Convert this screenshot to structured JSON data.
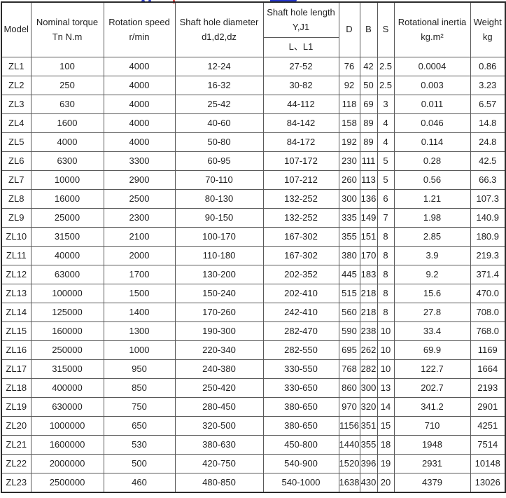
{
  "colors": {
    "border_outer": "#2b2b2b",
    "border_inner": "#595959",
    "text": "#1f1f1f",
    "clipped_title_blue": "#2233cc",
    "clipped_title_red": "#e02020",
    "background": "#ffffff"
  },
  "table": {
    "header": {
      "model": "Model",
      "nominal_torque": {
        "line1": "Nominal torque",
        "line2": "Tn N.m"
      },
      "rotation_speed": {
        "line1": "Rotation speed",
        "line2": "r/min"
      },
      "shaft_hole_diameter": {
        "line1": "Shaft hole diameter",
        "line2": "d1,d2,dz"
      },
      "shaft_hole_length": {
        "line1": "Shaft hole length",
        "line2": "Y,J1"
      },
      "shaft_hole_length_sub": "L、L1",
      "d": "D",
      "b": "B",
      "s": "S",
      "rotational_inertia": {
        "line1": "Rotational inertia",
        "line2": "kg.m²"
      },
      "weight": {
        "line1": "Weight",
        "line2": "kg"
      }
    },
    "rows": [
      [
        "ZL1",
        "100",
        "4000",
        "12-24",
        "27-52",
        "76",
        "42",
        "2.5",
        "0.0004",
        "0.86"
      ],
      [
        "ZL2",
        "250",
        "4000",
        "16-32",
        "30-82",
        "92",
        "50",
        "2.5",
        "0.003",
        "3.23"
      ],
      [
        "ZL3",
        "630",
        "4000",
        "25-42",
        "44-112",
        "118",
        "69",
        "3",
        "0.011",
        "6.57"
      ],
      [
        "ZL4",
        "1600",
        "4000",
        "40-60",
        "84-142",
        "158",
        "89",
        "4",
        "0.046",
        "14.8"
      ],
      [
        "ZL5",
        "4000",
        "4000",
        "50-80",
        "84-172",
        "192",
        "89",
        "4",
        "0.114",
        "24.8"
      ],
      [
        "ZL6",
        "6300",
        "3300",
        "60-95",
        "107-172",
        "230",
        "111",
        "5",
        "0.28",
        "42.5"
      ],
      [
        "ZL7",
        "10000",
        "2900",
        "70-110",
        "107-212",
        "260",
        "113",
        "5",
        "0.56",
        "66.3"
      ],
      [
        "ZL8",
        "16000",
        "2500",
        "80-130",
        "132-252",
        "300",
        "136",
        "6",
        "1.21",
        "107.3"
      ],
      [
        "ZL9",
        "25000",
        "2300",
        "90-150",
        "132-252",
        "335",
        "149",
        "7",
        "1.98",
        "140.9"
      ],
      [
        "ZL10",
        "31500",
        "2100",
        "100-170",
        "167-302",
        "355",
        "151",
        "8",
        "2.85",
        "180.9"
      ],
      [
        "ZL11",
        "40000",
        "2000",
        "110-180",
        "167-302",
        "380",
        "170",
        "8",
        "3.9",
        "219.3"
      ],
      [
        "ZL12",
        "63000",
        "1700",
        "130-200",
        "202-352",
        "445",
        "183",
        "8",
        "9.2",
        "371.4"
      ],
      [
        "ZL13",
        "100000",
        "1500",
        "150-240",
        "202-410",
        "515",
        "218",
        "8",
        "15.6",
        "470.0"
      ],
      [
        "ZL14",
        "125000",
        "1400",
        "170-260",
        "242-410",
        "560",
        "218",
        "8",
        "27.8",
        "708.0"
      ],
      [
        "ZL15",
        "160000",
        "1300",
        "190-300",
        "282-470",
        "590",
        "238",
        "10",
        "33.4",
        "768.0"
      ],
      [
        "ZL16",
        "250000",
        "1000",
        "220-340",
        "282-550",
        "695",
        "262",
        "10",
        "69.9",
        "1169"
      ],
      [
        "ZL17",
        "315000",
        "950",
        "240-380",
        "330-550",
        "768",
        "282",
        "10",
        "122.7",
        "1664"
      ],
      [
        "ZL18",
        "400000",
        "850",
        "250-420",
        "330-650",
        "860",
        "300",
        "13",
        "202.7",
        "2193"
      ],
      [
        "ZL19",
        "630000",
        "750",
        "280-450",
        "380-650",
        "970",
        "320",
        "14",
        "341.2",
        "2901"
      ],
      [
        "ZL20",
        "1000000",
        "650",
        "320-500",
        "380-650",
        "1156",
        "351",
        "15",
        "710",
        "4251"
      ],
      [
        "ZL21",
        "1600000",
        "530",
        "380-630",
        "450-800",
        "1440",
        "355",
        "18",
        "1948",
        "7514"
      ],
      [
        "ZL22",
        "2000000",
        "500",
        "420-750",
        "540-900",
        "1520",
        "396",
        "19",
        "2931",
        "10148"
      ],
      [
        "ZL23",
        "2500000",
        "460",
        "480-850",
        "540-1000",
        "1638",
        "430",
        "20",
        "4379",
        "13026"
      ]
    ]
  }
}
